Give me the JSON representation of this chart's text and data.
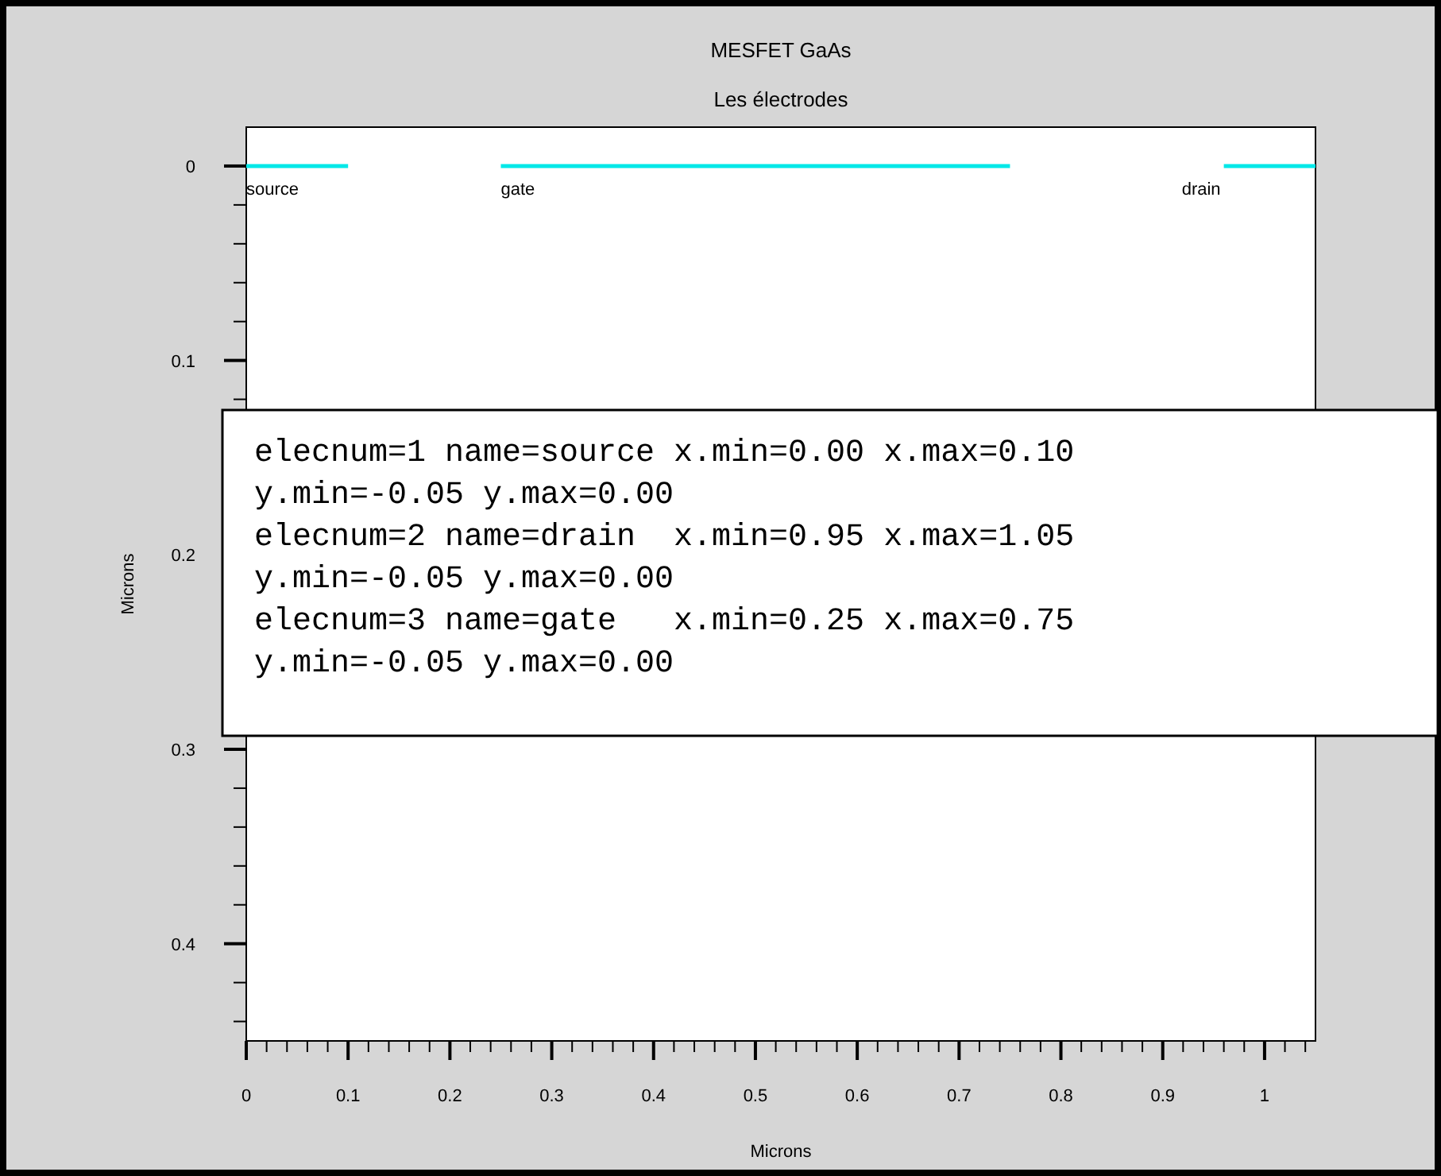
{
  "chart_data": {
    "type": "line",
    "title": "MESFET GaAs",
    "subtitle": "Les électrodes",
    "xlabel": "Microns",
    "ylabel": "Microns",
    "xlim": [
      0,
      1.05
    ],
    "ylim": [
      0.45,
      -0.02
    ],
    "xticks": [
      0,
      {
        "value": 0.02,
        "label": null
      },
      {
        "value": 0.04,
        "label": null
      },
      {
        "value": 0.06,
        "label": null
      },
      {
        "value": 0.08,
        "label": null
      },
      0.1,
      {
        "value": 0.12,
        "label": null
      },
      {
        "value": 0.14,
        "label": null
      },
      {
        "value": 0.16,
        "label": null
      },
      {
        "value": 0.18,
        "label": null
      },
      0.2,
      {
        "value": 0.22,
        "label": null
      },
      {
        "value": 0.24,
        "label": null
      },
      {
        "value": 0.26,
        "label": null
      },
      {
        "value": 0.28,
        "label": null
      },
      0.3,
      {
        "value": 0.32,
        "label": null
      },
      {
        "value": 0.34,
        "label": null
      },
      {
        "value": 0.36,
        "label": null
      },
      {
        "value": 0.38,
        "label": null
      },
      0.4,
      {
        "value": 0.42,
        "label": null
      },
      {
        "value": 0.44,
        "label": null
      },
      {
        "value": 0.46,
        "label": null
      },
      {
        "value": 0.48,
        "label": null
      },
      0.5,
      {
        "value": 0.52,
        "label": null
      },
      {
        "value": 0.54,
        "label": null
      },
      {
        "value": 0.56,
        "label": null
      },
      {
        "value": 0.58,
        "label": null
      },
      0.6,
      {
        "value": 0.62,
        "label": null
      },
      {
        "value": 0.64,
        "label": null
      },
      {
        "value": 0.66,
        "label": null
      },
      {
        "value": 0.68,
        "label": null
      },
      0.7,
      {
        "value": 0.72,
        "label": null
      },
      {
        "value": 0.74,
        "label": null
      },
      {
        "value": 0.76,
        "label": null
      },
      {
        "value": 0.78,
        "label": null
      },
      0.8,
      {
        "value": 0.82,
        "label": null
      },
      {
        "value": 0.84,
        "label": null
      },
      {
        "value": 0.86,
        "label": null
      },
      {
        "value": 0.88,
        "label": null
      },
      0.9,
      {
        "value": 0.92,
        "label": null
      },
      {
        "value": 0.94,
        "label": null
      },
      {
        "value": 0.96,
        "label": null
      },
      {
        "value": 0.98,
        "label": null
      },
      1,
      {
        "value": 1.02,
        "label": null
      },
      {
        "value": 1.04,
        "label": null
      }
    ],
    "yticks": [
      0,
      {
        "value": 0.02,
        "label": null
      },
      {
        "value": 0.04,
        "label": null
      },
      {
        "value": 0.06,
        "label": null
      },
      {
        "value": 0.08,
        "label": null
      },
      0.1,
      {
        "value": 0.12,
        "label": null
      },
      {
        "value": 0.14,
        "label": null
      },
      {
        "value": 0.16,
        "label": null
      },
      {
        "value": 0.18,
        "label": null
      },
      0.2,
      {
        "value": 0.22,
        "label": null
      },
      {
        "value": 0.24,
        "label": null
      },
      {
        "value": 0.26,
        "label": null
      },
      {
        "value": 0.28,
        "label": null
      },
      0.3,
      {
        "value": 0.32,
        "label": null
      },
      {
        "value": 0.34,
        "label": null
      },
      {
        "value": 0.36,
        "label": null
      },
      {
        "value": 0.38,
        "label": null
      },
      0.4,
      {
        "value": 0.42,
        "label": null
      },
      {
        "value": 0.44,
        "label": null
      }
    ],
    "grid": false,
    "marker": "none",
    "line_style": "solid",
    "series": [
      {
        "name": "source",
        "color": "#00e8e8",
        "x": [
          0,
          0.1
        ],
        "values": [
          0,
          0
        ]
      },
      {
        "name": "gate",
        "color": "#00e8e8",
        "x": [
          0.25,
          0.75
        ],
        "values": [
          0,
          0
        ]
      },
      {
        "name": "drain",
        "color": "#00e8e8",
        "x": [
          0.96,
          1.05
        ],
        "values": [
          0,
          0
        ]
      }
    ],
    "annotations": [
      "elecnum=1 name=source x.min=0.00 x.max=0.10",
      "y.min=-0.05 y.max=0.00",
      "elecnum=2 name=drain  x.min=0.95 x.max=1.05",
      "y.min=-0.05 y.max=0.00",
      "elecnum=3 name=gate   x.min=0.25 x.max=0.75",
      "y.min=-0.05 y.max=0.00"
    ]
  }
}
